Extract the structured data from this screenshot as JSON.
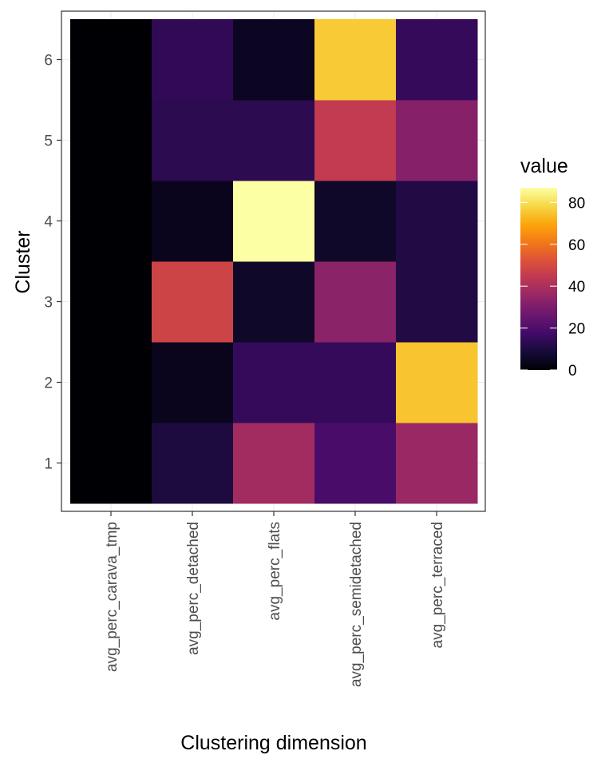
{
  "chart_data": {
    "type": "heatmap",
    "title": "",
    "xlabel": "Clustering dimension",
    "ylabel": "Cluster",
    "x_categories": [
      "avg_perc_carava_tmp",
      "avg_perc_detached",
      "avg_perc_flats",
      "avg_perc_semidetached",
      "avg_perc_terraced"
    ],
    "y_categories": [
      "1",
      "2",
      "3",
      "4",
      "5",
      "6"
    ],
    "values": [
      [
        0,
        10,
        38,
        19,
        36
      ],
      [
        0,
        4,
        15,
        15,
        75
      ],
      [
        0,
        48,
        6,
        33,
        11
      ],
      [
        0,
        4,
        87,
        6,
        11
      ],
      [
        0,
        13,
        13,
        45,
        32
      ],
      [
        0,
        14,
        5,
        76,
        15
      ]
    ],
    "legend": {
      "title": "value",
      "ticks": [
        0,
        20,
        40,
        60,
        80
      ],
      "range": [
        0,
        87
      ],
      "palette": "inferno",
      "placement": "right"
    },
    "grid": true
  }
}
